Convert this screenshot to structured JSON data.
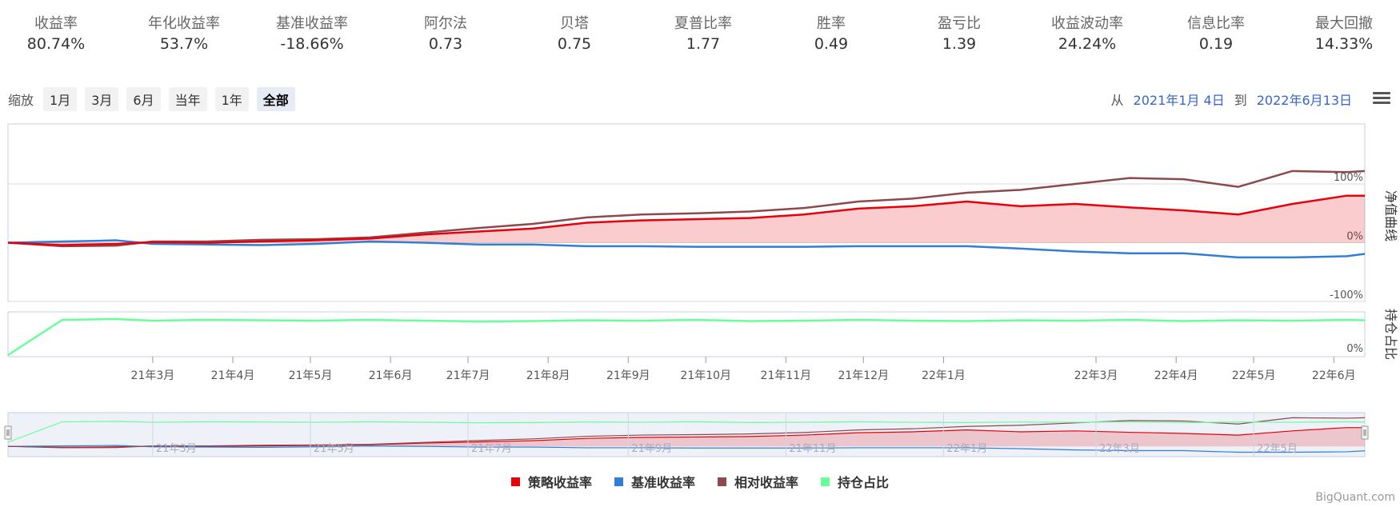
{
  "stats": [
    {
      "label": "收益率",
      "value": "80.74%"
    },
    {
      "label": "年化收益率",
      "value": "53.7%"
    },
    {
      "label": "基准收益率",
      "value": "-18.66%"
    },
    {
      "label": "阿尔法",
      "value": "0.73"
    },
    {
      "label": "贝塔",
      "value": "0.75"
    },
    {
      "label": "夏普比率",
      "value": "1.77"
    },
    {
      "label": "胜率",
      "value": "0.49"
    },
    {
      "label": "盈亏比",
      "value": "1.39"
    },
    {
      "label": "收益波动率",
      "value": "24.24%"
    },
    {
      "label": "信息比率",
      "value": "0.19"
    },
    {
      "label": "最大回撤",
      "value": "14.33%"
    }
  ],
  "zoom": {
    "label": "缩放",
    "buttons": [
      "1月",
      "3月",
      "6月",
      "当年",
      "1年",
      "全部"
    ],
    "active": "全部"
  },
  "range": {
    "from_label": "从",
    "from": "2021年1月 4日",
    "to_label": "到",
    "to": "2022年6月13日"
  },
  "credit": "BigQuant.com",
  "chart_data": {
    "type": "line",
    "panes": [
      {
        "name": "净值曲线",
        "y_ticks": [
          "100%",
          "0%",
          "-100%"
        ],
        "ylim": [
          -100,
          100
        ]
      },
      {
        "name": "持仓占比",
        "y_ticks": [
          "0%"
        ]
      }
    ],
    "x_ticks": [
      "21年3月",
      "21年4月",
      "21年5月",
      "21年6月",
      "21年7月",
      "21年8月",
      "21年9月",
      "21年10月",
      "21年11月",
      "21年12月",
      "22年1月",
      "22年3月",
      "22年4月",
      "22年5月",
      "22年6月"
    ],
    "navigator_ticks": [
      "21年3月",
      "21年5月",
      "21年7月",
      "21年9月",
      "21年11月",
      "22年1月",
      "22年3月",
      "22年5月"
    ],
    "x": [
      "2021-01-04",
      "2021-01-25",
      "2021-02-15",
      "2021-03-01",
      "2021-03-22",
      "2021-04-12",
      "2021-05-03",
      "2021-05-24",
      "2021-06-14",
      "2021-07-05",
      "2021-07-26",
      "2021-08-16",
      "2021-09-06",
      "2021-09-27",
      "2021-10-18",
      "2021-11-08",
      "2021-11-29",
      "2021-12-20",
      "2022-01-10",
      "2022-01-31",
      "2022-02-21",
      "2022-03-14",
      "2022-04-04",
      "2022-04-25",
      "2022-05-16",
      "2022-06-06",
      "2022-06-13"
    ],
    "series": [
      {
        "name": "策略收益率",
        "color": "#e8000b",
        "values": [
          0,
          -4,
          -2,
          1,
          0,
          2,
          4,
          7,
          14,
          19,
          24,
          34,
          38,
          40,
          42,
          48,
          58,
          62,
          70,
          62,
          66,
          60,
          55,
          48,
          66,
          80,
          80
        ]
      },
      {
        "name": "基准收益率",
        "color": "#2f7ed8",
        "values": [
          0,
          2,
          4,
          -2,
          -3,
          -4,
          -2,
          2,
          0,
          -3,
          -3,
          -6,
          -6,
          -7,
          -7,
          -7,
          -6,
          -6,
          -6,
          -10,
          -15,
          -18,
          -18,
          -25,
          -25,
          -23,
          -19
        ]
      },
      {
        "name": "相对收益率",
        "color": "#8b4a4e",
        "values": [
          0,
          -6,
          -5,
          2,
          2,
          5,
          6,
          9,
          17,
          25,
          32,
          43,
          48,
          50,
          53,
          59,
          70,
          75,
          85,
          90,
          100,
          110,
          108,
          95,
          122,
          120,
          122
        ]
      },
      {
        "name": "持仓占比",
        "color": "#66ff99",
        "values": [
          0,
          88,
          90,
          86,
          88,
          87,
          86,
          88,
          86,
          84,
          85,
          87,
          86,
          88,
          85,
          86,
          88,
          86,
          85,
          87,
          86,
          88,
          85,
          87,
          86,
          88,
          87
        ]
      }
    ]
  }
}
